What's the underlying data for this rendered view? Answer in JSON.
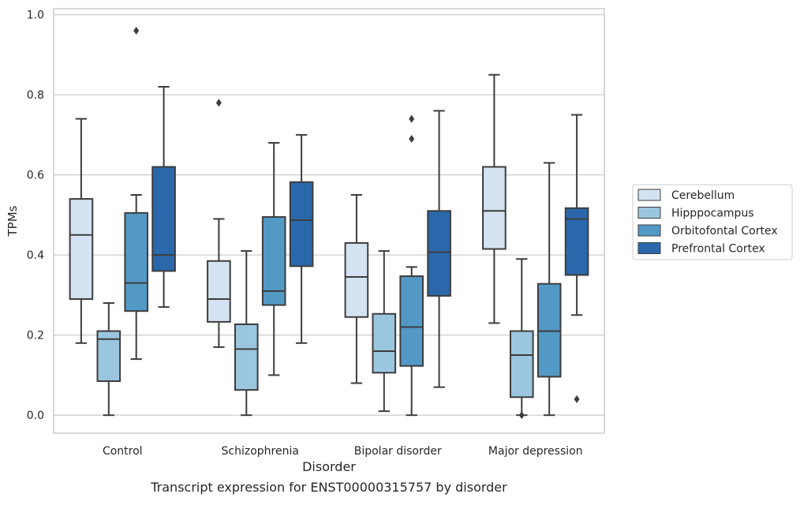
{
  "chart_data": {
    "type": "boxplot",
    "title": "",
    "caption": "Transcript expression for ENST00000315757 by disorder",
    "xlabel": "Disorder",
    "ylabel": "TPMs",
    "ylim": [
      -0.045,
      1.015
    ],
    "yticks": [
      "0.0",
      "0.2",
      "0.4",
      "0.6",
      "0.8",
      "1.0"
    ],
    "ytick_values": [
      0,
      0.2,
      0.4,
      0.6,
      0.8,
      1.0
    ],
    "grid": "horizontal",
    "legend_placement": "right",
    "categories": [
      "Control",
      "Schizophrenia",
      "Bipolar disorder",
      "Major depression"
    ],
    "series": [
      {
        "name": "Cerebellum",
        "color": "#d4e2f1",
        "boxes": [
          {
            "whislo": 0.18,
            "q1": 0.29,
            "med": 0.45,
            "q3": 0.54,
            "whishi": 0.74,
            "fliers": []
          },
          {
            "whislo": 0.17,
            "q1": 0.233,
            "med": 0.29,
            "q3": 0.385,
            "whishi": 0.49,
            "fliers": [
              0.78
            ]
          },
          {
            "whislo": 0.08,
            "q1": 0.245,
            "med": 0.345,
            "q3": 0.43,
            "whishi": 0.55,
            "fliers": []
          },
          {
            "whislo": 0.23,
            "q1": 0.415,
            "med": 0.51,
            "q3": 0.62,
            "whishi": 0.85,
            "fliers": []
          }
        ]
      },
      {
        "name": "Hipppocampus",
        "color": "#9bc6df",
        "boxes": [
          {
            "whislo": 0.0,
            "q1": 0.085,
            "med": 0.19,
            "q3": 0.21,
            "whishi": 0.28,
            "fliers": []
          },
          {
            "whislo": 0.0,
            "q1": 0.063,
            "med": 0.165,
            "q3": 0.227,
            "whishi": 0.41,
            "fliers": []
          },
          {
            "whislo": 0.01,
            "q1": 0.106,
            "med": 0.16,
            "q3": 0.253,
            "whishi": 0.41,
            "fliers": []
          },
          {
            "whislo": 0.0,
            "q1": 0.045,
            "med": 0.15,
            "q3": 0.21,
            "whishi": 0.39,
            "fliers": [
              0.0
            ]
          }
        ]
      },
      {
        "name": "Orbitofontal Cortex",
        "color": "#5399c6",
        "boxes": [
          {
            "whislo": 0.14,
            "q1": 0.26,
            "med": 0.33,
            "q3": 0.505,
            "whishi": 0.55,
            "fliers": [
              0.96
            ]
          },
          {
            "whislo": 0.1,
            "q1": 0.275,
            "med": 0.31,
            "q3": 0.495,
            "whishi": 0.68,
            "fliers": []
          },
          {
            "whislo": 0.0,
            "q1": 0.123,
            "med": 0.22,
            "q3": 0.347,
            "whishi": 0.37,
            "fliers": [
              0.69,
              0.74
            ]
          },
          {
            "whislo": 0.0,
            "q1": 0.096,
            "med": 0.21,
            "q3": 0.328,
            "whishi": 0.63,
            "fliers": []
          }
        ]
      },
      {
        "name": "Prefrontal Cortex",
        "color": "#2a68ab",
        "boxes": [
          {
            "whislo": 0.27,
            "q1": 0.36,
            "med": 0.4,
            "q3": 0.62,
            "whishi": 0.82,
            "fliers": []
          },
          {
            "whislo": 0.18,
            "q1": 0.372,
            "med": 0.487,
            "q3": 0.582,
            "whishi": 0.7,
            "fliers": []
          },
          {
            "whislo": 0.07,
            "q1": 0.298,
            "med": 0.407,
            "q3": 0.51,
            "whishi": 0.76,
            "fliers": []
          },
          {
            "whislo": 0.25,
            "q1": 0.35,
            "med": 0.49,
            "q3": 0.517,
            "whishi": 0.75,
            "fliers": [
              0.04
            ]
          }
        ]
      }
    ]
  }
}
